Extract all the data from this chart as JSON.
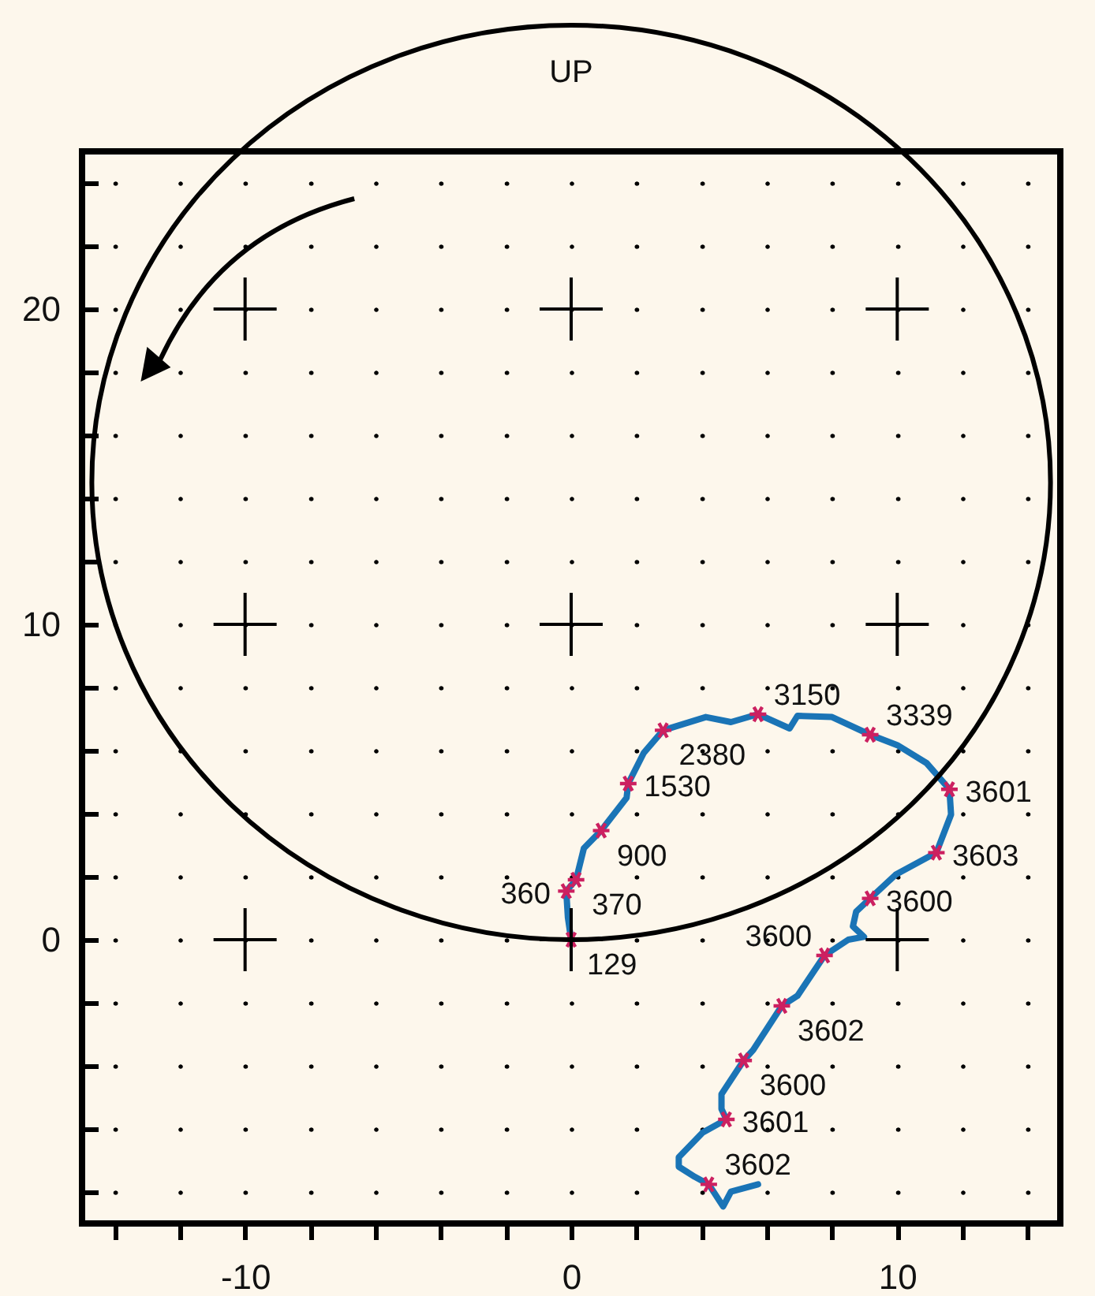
{
  "chart_data": {
    "type": "line",
    "xlim": [
      -15,
      15
    ],
    "ylim": [
      -9,
      25
    ],
    "xticks": [
      {
        "value": -14,
        "label": null
      },
      {
        "value": -12,
        "label": null
      },
      -10,
      {
        "value": -8,
        "label": null
      },
      {
        "value": -6,
        "label": null
      },
      {
        "value": -4,
        "label": null
      },
      {
        "value": -2,
        "label": null
      },
      0,
      {
        "value": 2,
        "label": null
      },
      {
        "value": 4,
        "label": null
      },
      {
        "value": 6,
        "label": null
      },
      {
        "value": 8,
        "label": null
      },
      10,
      {
        "value": 12,
        "label": null
      },
      {
        "value": 14,
        "label": null
      }
    ],
    "yticks": [
      {
        "value": -8,
        "label": null
      },
      {
        "value": -6,
        "label": null
      },
      {
        "value": -4,
        "label": null
      },
      {
        "value": -2,
        "label": null
      },
      0,
      {
        "value": 2,
        "label": null
      },
      {
        "value": 4,
        "label": null
      },
      {
        "value": 6,
        "label": null
      },
      {
        "value": 8,
        "label": null
      },
      10,
      {
        "value": 12,
        "label": null
      },
      {
        "value": 14,
        "label": null
      },
      {
        "value": 16,
        "label": null
      },
      {
        "value": 18,
        "label": null
      },
      20,
      {
        "value": 22,
        "label": null
      },
      {
        "value": 24,
        "label": null
      }
    ],
    "grid": true,
    "series": [
      {
        "type": "line",
        "color": "#1a74b6",
        "marker": "none",
        "x": [
          0,
          -0.1,
          -0.15,
          0.15,
          0.39,
          0.92,
          1.7,
          1.75,
          2.23,
          2.82,
          4.13,
          4.9,
          5.73,
          6.7,
          6.94,
          8.0,
          9.17,
          10.0,
          10.9,
          11.6,
          11.65,
          11.2,
          9.95,
          9.17,
          8.74,
          8.64,
          8.98,
          8.5,
          7.77,
          6.94,
          6.46,
          5.58,
          5.29,
          4.61,
          4.61,
          4.76,
          4.03,
          3.3,
          3.3,
          3.79,
          4.22,
          4.66,
          4.9,
          5.73
        ],
        "values": [
          0,
          0.7,
          1.54,
          1.9,
          2.9,
          3.46,
          4.5,
          4.95,
          5.93,
          6.64,
          7.06,
          6.9,
          7.15,
          6.7,
          7.1,
          7.06,
          6.5,
          6.17,
          5.6,
          4.77,
          3.97,
          2.76,
          2.06,
          1.31,
          0.89,
          0.42,
          0.09,
          0,
          -0.5,
          -1.78,
          -2.1,
          -3.5,
          -3.83,
          -4.9,
          -5.37,
          -5.7,
          -6.12,
          -6.9,
          -7.2,
          -7.52,
          -7.76,
          -8.46,
          -7.99,
          -7.76
        ]
      },
      {
        "type": "scatter",
        "color": "#cc2060",
        "marker": "cross",
        "x": [
          0,
          -0.15,
          0.15,
          0.92,
          1.75,
          2.82,
          5.73,
          9.17,
          11.6,
          11.2,
          9.17,
          7.77,
          6.46,
          5.29,
          4.76,
          4.22
        ],
        "values": [
          0,
          1.54,
          1.9,
          3.46,
          4.95,
          6.64,
          7.15,
          6.5,
          4.77,
          2.76,
          1.31,
          -0.5,
          -2.1,
          -3.83,
          -5.7,
          -7.76
        ]
      }
    ],
    "annotations": [
      "UP",
      {
        "text": "129",
        "x": 0,
        "y": 0
      },
      {
        "text": "360",
        "x": -0.15,
        "y": 1.54
      },
      {
        "text": "370",
        "x": 0.15,
        "y": 1.9
      },
      {
        "text": "900",
        "x": 0.92,
        "y": 3.46
      },
      {
        "text": "1530",
        "x": 1.75,
        "y": 4.95
      },
      {
        "text": "2380",
        "x": 2.82,
        "y": 6.64
      },
      {
        "text": "3150",
        "x": 5.73,
        "y": 7.15
      },
      {
        "text": "3339",
        "x": 9.17,
        "y": 6.5
      },
      {
        "text": "3601",
        "x": 11.6,
        "y": 4.77
      },
      {
        "text": "3603",
        "x": 11.2,
        "y": 2.76
      },
      {
        "text": "3600",
        "x": 9.17,
        "y": 1.31
      },
      {
        "text": "3600",
        "x": 7.77,
        "y": -0.5
      },
      {
        "text": "3602",
        "x": 6.46,
        "y": -2.1
      },
      {
        "text": "3600",
        "x": 5.29,
        "y": -3.83
      },
      {
        "text": "3601",
        "x": 4.76,
        "y": -5.7
      },
      {
        "text": "3602",
        "x": 4.22,
        "y": -7.76
      }
    ]
  }
}
